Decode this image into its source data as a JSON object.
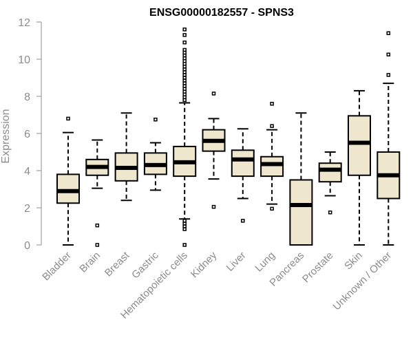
{
  "chart_data": {
    "type": "boxplot",
    "title": "ENSG00000182557 - SPNS3",
    "xlabel": "",
    "ylabel": "Expression",
    "ylim": [
      0,
      12
    ],
    "yticks": [
      0,
      2,
      4,
      6,
      8,
      10,
      12
    ],
    "colors": {
      "box_fill": "#efe7cd",
      "stroke": "#000000",
      "axis": "#8c8c8c"
    },
    "categories": [
      "Bladder",
      "Brain",
      "Breast",
      "Gastric",
      "Hematopoietic cells",
      "Kidney",
      "Liver",
      "Lung",
      "Pancreas",
      "Prostate",
      "Skin",
      "Unknown / Other"
    ],
    "boxes": [
      {
        "category": "Bladder",
        "whisker_low": 0.0,
        "q1": 2.25,
        "median": 2.9,
        "q3": 3.8,
        "whisker_high": 6.05,
        "outliers": [
          6.8
        ]
      },
      {
        "category": "Brain",
        "whisker_low": 3.05,
        "q1": 3.75,
        "median": 4.2,
        "q3": 4.6,
        "whisker_high": 5.65,
        "outliers": [
          1.05,
          0.0
        ]
      },
      {
        "category": "Breast",
        "whisker_low": 2.4,
        "q1": 3.45,
        "median": 4.15,
        "q3": 4.95,
        "whisker_high": 7.1,
        "outliers": []
      },
      {
        "category": "Gastric",
        "whisker_low": 2.95,
        "q1": 3.8,
        "median": 4.3,
        "q3": 4.95,
        "whisker_high": 5.5,
        "outliers": [
          6.75
        ]
      },
      {
        "category": "Hematopoietic cells",
        "whisker_low": 1.4,
        "q1": 3.7,
        "median": 4.45,
        "q3": 5.3,
        "whisker_high": 7.65,
        "outliers": [
          0.0,
          0.85,
          1.0,
          1.15,
          1.3,
          7.8,
          7.95,
          8.1,
          8.25,
          8.4,
          8.55,
          8.7,
          8.85,
          9.0,
          9.15,
          9.3,
          9.45,
          9.6,
          9.75,
          9.9,
          10.05,
          10.2,
          10.35,
          10.5,
          10.9,
          11.3,
          11.6
        ]
      },
      {
        "category": "Kidney",
        "whisker_low": 3.55,
        "q1": 5.05,
        "median": 5.6,
        "q3": 6.2,
        "whisker_high": 6.8,
        "outliers": [
          8.15,
          2.05
        ]
      },
      {
        "category": "Liver",
        "whisker_low": 2.5,
        "q1": 3.7,
        "median": 4.6,
        "q3": 5.1,
        "whisker_high": 6.25,
        "outliers": [
          1.3
        ]
      },
      {
        "category": "Lung",
        "whisker_low": 2.2,
        "q1": 3.7,
        "median": 4.35,
        "q3": 4.75,
        "whisker_high": 6.2,
        "outliers": [
          7.6,
          6.4,
          1.95
        ]
      },
      {
        "category": "Pancreas",
        "whisker_low": 0.0,
        "q1": 0.0,
        "median": 2.15,
        "q3": 3.5,
        "whisker_high": 7.1,
        "outliers": []
      },
      {
        "category": "Prostate",
        "whisker_low": 2.65,
        "q1": 3.4,
        "median": 4.05,
        "q3": 4.4,
        "whisker_high": 5.0,
        "outliers": [
          1.75
        ]
      },
      {
        "category": "Skin",
        "whisker_low": 0.0,
        "q1": 3.75,
        "median": 5.5,
        "q3": 6.95,
        "whisker_high": 8.3,
        "outliers": []
      },
      {
        "category": "Unknown / Other",
        "whisker_low": 0.0,
        "q1": 2.5,
        "median": 3.75,
        "q3": 5.0,
        "whisker_high": 8.7,
        "outliers": [
          9.15,
          10.25,
          11.4
        ]
      }
    ]
  }
}
